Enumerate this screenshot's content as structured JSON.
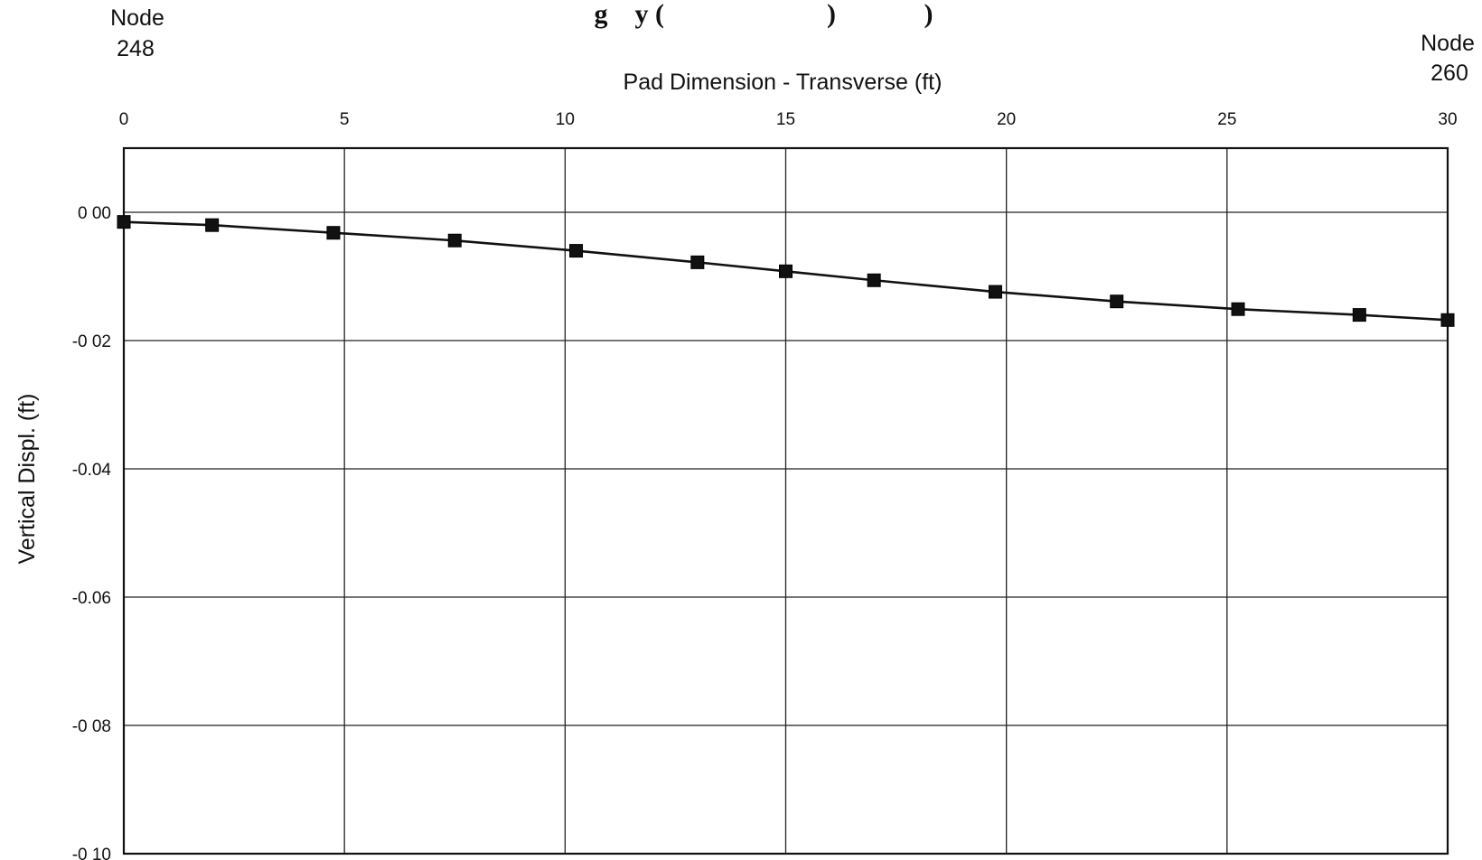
{
  "chart_data": {
    "type": "line",
    "title": "",
    "title_visible_fragment": "g    y (                        )             )",
    "xlabel": "Pad Dimension - Transverse (ft)",
    "ylabel": "Vertical Displ. (ft)",
    "x_axis_position": "top",
    "xlim": [
      0,
      30
    ],
    "ylim": [
      -0.1,
      0.01
    ],
    "x_ticks": [
      0,
      5,
      10,
      15,
      20,
      25,
      30
    ],
    "x_tick_labels": [
      "0",
      "5",
      "10",
      "15",
      "20",
      "25",
      "30"
    ],
    "y_ticks": [
      0.0,
      -0.02,
      -0.04,
      -0.06,
      -0.08,
      -0.1
    ],
    "y_tick_labels": [
      "0 00",
      "-0 02",
      "-0.04",
      "-0.06",
      "-0 08",
      "-0 10"
    ],
    "grid": true,
    "series": [
      {
        "color": "#111111",
        "marker": "square",
        "x": [
          0,
          2,
          4.75,
          7.5,
          10.25,
          13,
          15,
          17,
          19.75,
          22.5,
          25.25,
          28,
          30
        ],
        "y": [
          -0.0015,
          -0.002,
          -0.0032,
          -0.0044,
          -0.006,
          -0.0078,
          -0.0092,
          -0.0106,
          -0.0124,
          -0.0139,
          -0.0151,
          -0.016,
          -0.0168
        ]
      }
    ],
    "annotations": {
      "left_node": [
        "Node",
        "248"
      ],
      "right_node": [
        "Node",
        "260"
      ]
    }
  }
}
